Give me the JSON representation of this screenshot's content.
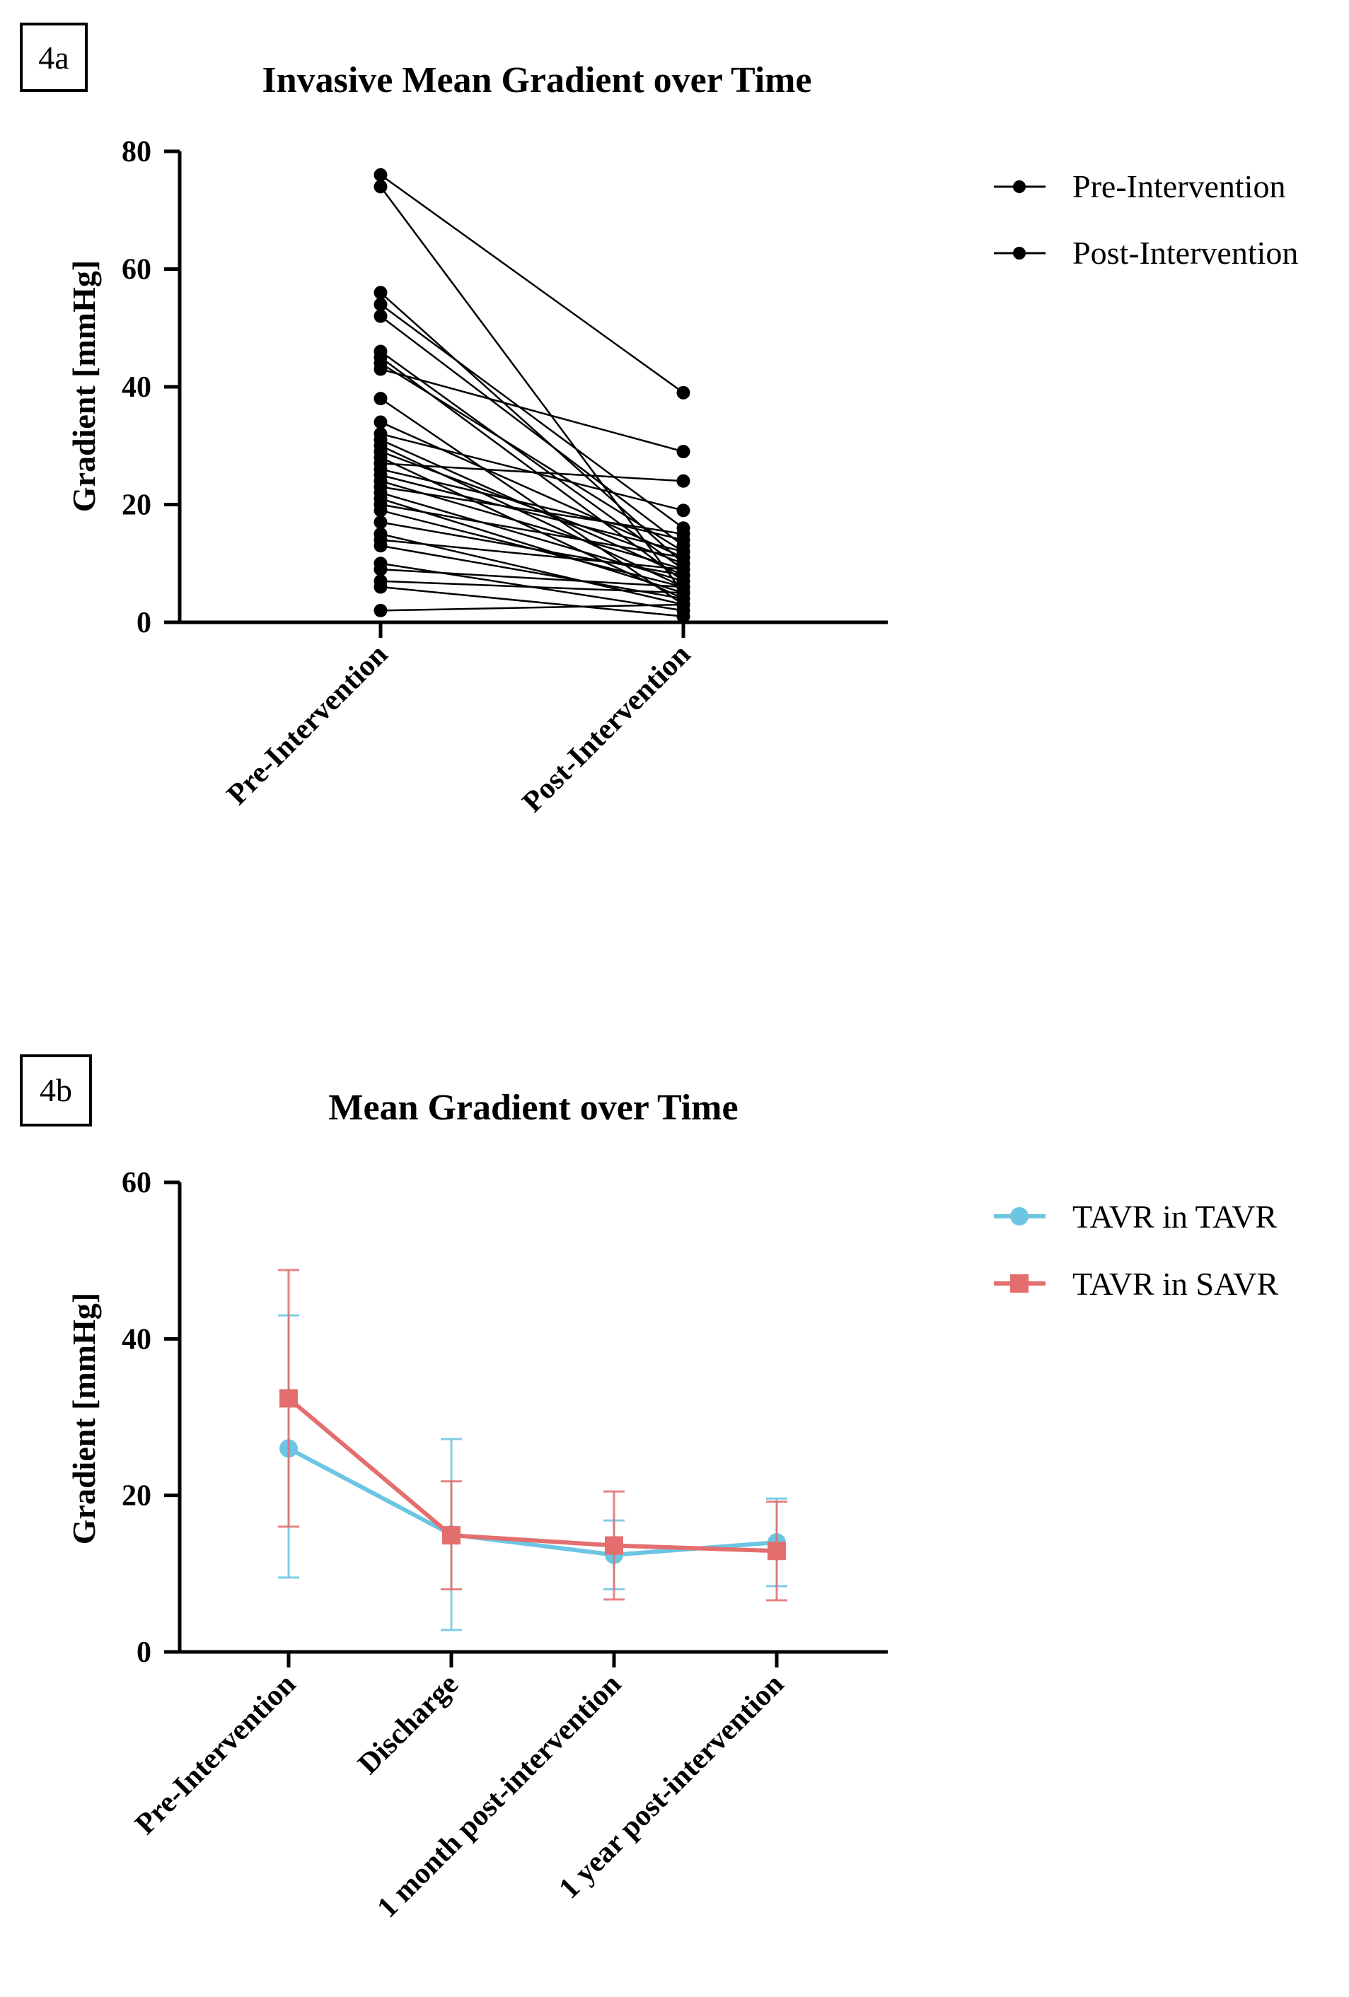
{
  "chart_data": [
    {
      "panel": "4a",
      "type": "line",
      "subtype": "paired-before-after",
      "title": "Invasive Mean Gradient over Time",
      "xlabel": "",
      "ylabel": "Gradient [mmHg]",
      "ylim": [
        0,
        80
      ],
      "yticks": [
        0,
        20,
        40,
        60,
        80
      ],
      "categories": [
        "Pre-Intervention",
        "Post-Intervention"
      ],
      "legend": {
        "position": "top-right",
        "entries": [
          "Pre-Intervention",
          "Post-Intervention"
        ]
      },
      "pairs": [
        [
          76,
          39
        ],
        [
          74,
          5
        ],
        [
          56,
          10
        ],
        [
          54,
          16
        ],
        [
          52,
          13
        ],
        [
          46,
          9
        ],
        [
          45,
          7
        ],
        [
          44,
          12
        ],
        [
          43,
          29
        ],
        [
          38,
          3
        ],
        [
          34,
          11
        ],
        [
          32,
          19
        ],
        [
          31,
          8
        ],
        [
          30,
          6
        ],
        [
          29,
          10
        ],
        [
          28,
          4
        ],
        [
          27,
          24
        ],
        [
          26,
          14
        ],
        [
          25,
          12
        ],
        [
          24,
          9
        ],
        [
          23,
          15
        ],
        [
          22,
          7
        ],
        [
          21,
          5
        ],
        [
          20,
          11
        ],
        [
          19,
          6
        ],
        [
          17,
          8
        ],
        [
          15,
          3
        ],
        [
          14,
          9
        ],
        [
          13,
          4
        ],
        [
          10,
          2
        ],
        [
          9,
          6
        ],
        [
          7,
          5
        ],
        [
          6,
          1
        ],
        [
          2,
          3
        ]
      ]
    },
    {
      "panel": "4b",
      "type": "line",
      "subtype": "mean-with-sd-error-bars",
      "title": "Mean Gradient over Time",
      "xlabel": "",
      "ylabel": "Gradient [mmHg]",
      "ylim": [
        0,
        60
      ],
      "yticks": [
        0,
        20,
        40,
        60
      ],
      "categories": [
        "Pre-Intervention",
        "Discharge",
        "1 month post-intervention",
        "1 year post-intervention"
      ],
      "legend": {
        "position": "top-right"
      },
      "series": [
        {
          "name": "TAVR in TAVR",
          "marker": "circle",
          "color": "#6cc5e3",
          "values": [
            26,
            15,
            12.4,
            14
          ],
          "err_low": [
            9.5,
            2.8,
            8,
            8.4
          ],
          "err_high": [
            43,
            27.2,
            16.8,
            19.6
          ]
        },
        {
          "name": "TAVR in SAVR",
          "marker": "square",
          "color": "#e46e6e",
          "values": [
            32.4,
            14.9,
            13.6,
            12.9
          ],
          "err_low": [
            16,
            8,
            6.7,
            6.6
          ],
          "err_high": [
            48.8,
            21.8,
            20.5,
            19.2
          ]
        }
      ]
    }
  ]
}
